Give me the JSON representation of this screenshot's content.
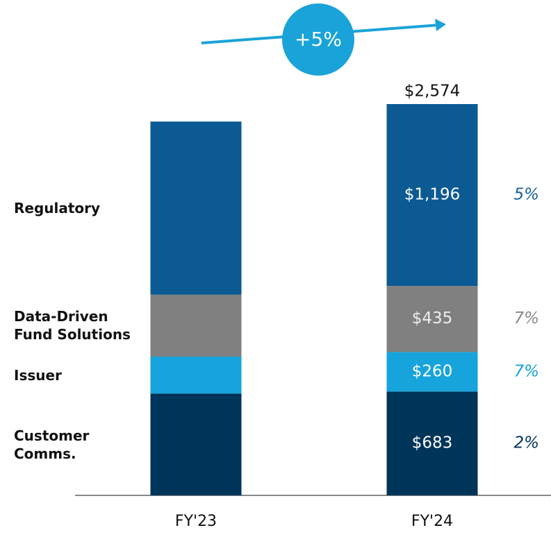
{
  "chart_data": {
    "type": "bar",
    "stacked": true,
    "categories": [
      "FY'23",
      "FY'24"
    ],
    "series": [
      {
        "name": "Customer\nComms.",
        "color": "#00355a",
        "values": [
          670,
          683
        ],
        "value_labels": [
          null,
          "$683"
        ],
        "growth_label": "2%",
        "growth_color": "#00355a"
      },
      {
        "name": "Issuer",
        "color": "#17a3db",
        "values": [
          243,
          260
        ],
        "value_labels": [
          null,
          "$260"
        ],
        "growth_label": "7%",
        "growth_color": "#17a3db"
      },
      {
        "name": "Data-Driven\nFund Solutions",
        "color": "#808080",
        "values": [
          407,
          435
        ],
        "value_labels": [
          null,
          "$435"
        ],
        "growth_label": "7%",
        "growth_color": "#8a8a8a"
      },
      {
        "name": "Regulatory",
        "color": "#0b5a93",
        "values": [
          1139,
          1196
        ],
        "value_labels": [
          null,
          "$1,196"
        ],
        "growth_label": "5%",
        "growth_color": "#1d5f96"
      }
    ],
    "totals": [
      null,
      2574
    ],
    "total_labels": [
      null,
      "$2,574"
    ],
    "annotation": "+5%"
  }
}
